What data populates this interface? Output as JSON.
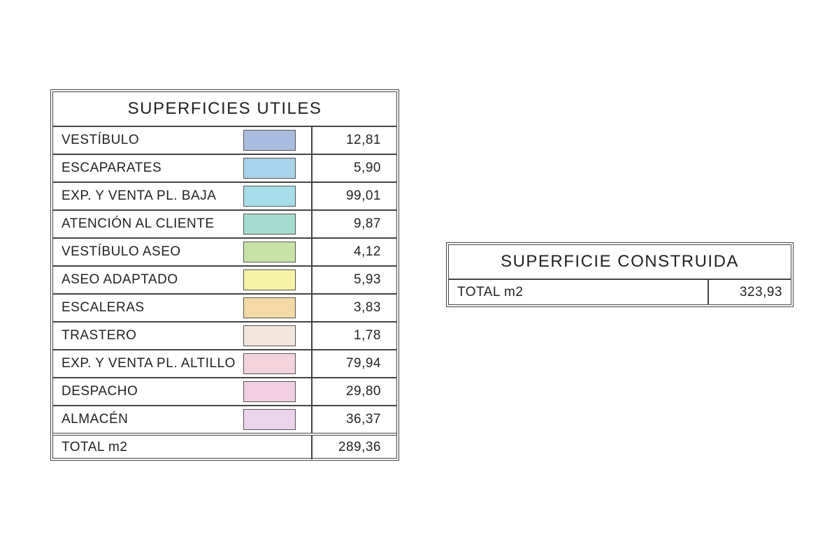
{
  "left": {
    "title": "SUPERFICIES UTILES",
    "rows": [
      {
        "label": "VESTÍBULO",
        "color": "#a9bde0",
        "value": "12,81"
      },
      {
        "label": "ESCAPARATES",
        "color": "#a9d3ea",
        "value": "5,90"
      },
      {
        "label": "EXP. Y VENTA PL. BAJA",
        "color": "#a6dde8",
        "value": "99,01"
      },
      {
        "label": "ATENCIÓN AL CLIENTE",
        "color": "#a6dcd0",
        "value": "9,87"
      },
      {
        "label": "VESTÍBULO ASEO",
        "color": "#c8e3a8",
        "value": "4,12"
      },
      {
        "label": "ASEO ADAPTADO",
        "color": "#f7f3a6",
        "value": "5,93"
      },
      {
        "label": "ESCALERAS",
        "color": "#f2d9a6",
        "value": "3,83"
      },
      {
        "label": "TRASTERO",
        "color": "#f3e6dc",
        "value": "1,78"
      },
      {
        "label": "EXP. Y VENTA PL. ALTILLO",
        "color": "#f3d3dc",
        "value": "79,94"
      },
      {
        "label": "DESPACHO",
        "color": "#f1d0e3",
        "value": "29,80"
      },
      {
        "label": "ALMACÉN",
        "color": "#ecd3ec",
        "value": "36,37"
      }
    ],
    "total": {
      "label": "TOTAL m2",
      "value": "289,36"
    }
  },
  "right": {
    "title": "SUPERFICIE CONSTRUIDA",
    "total": {
      "label": "TOTAL m2",
      "value": "323,93"
    }
  }
}
